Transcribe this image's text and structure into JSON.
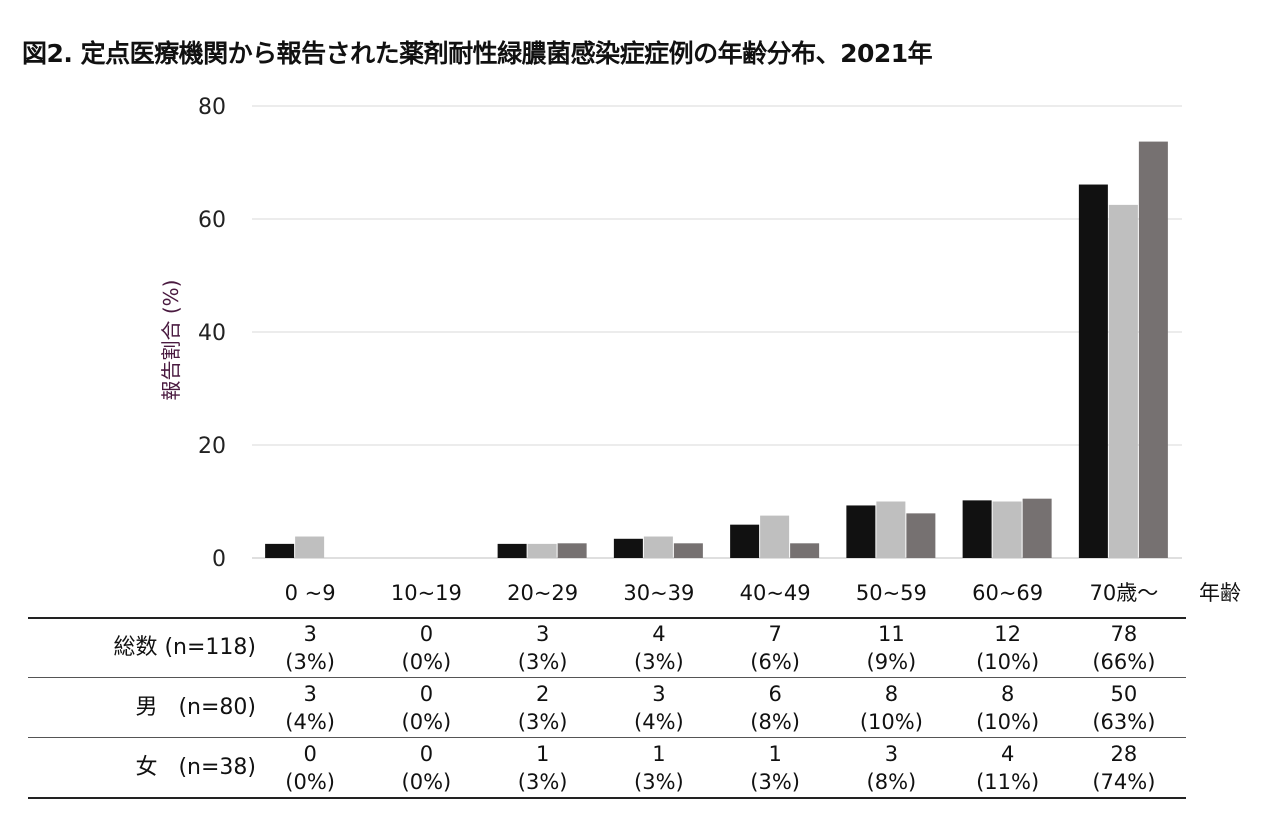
{
  "title": "図2. 定点医療機関から報告された薬剤耐性緑膿菌感染症症例の年齢分布、2021年",
  "chart_data": {
    "type": "bar",
    "ylabel": "報告割合 (%)",
    "xlabel": "年齢",
    "ylim": [
      0,
      80
    ],
    "yticks": [
      "0",
      "20",
      "40",
      "60",
      "80"
    ],
    "grid": true,
    "categories": [
      "0 ~9",
      "10~19",
      "20~29",
      "30~39",
      "40~49",
      "50~59",
      "60~69",
      "70歳～"
    ],
    "series": [
      {
        "name": "総数",
        "color": "#111111",
        "values": [
          2.5,
          0,
          2.5,
          3.4,
          5.9,
          9.3,
          10.2,
          66.1
        ]
      },
      {
        "name": "男",
        "color": "#bfbfbf",
        "values": [
          3.8,
          0,
          2.5,
          3.8,
          7.5,
          10.0,
          10.0,
          62.5
        ]
      },
      {
        "name": "女",
        "color": "#767171",
        "values": [
          0,
          0,
          2.6,
          2.6,
          2.6,
          7.9,
          10.5,
          73.7
        ]
      }
    ]
  },
  "table": {
    "rows": [
      {
        "label": "総数 (n=118)",
        "counts": [
          "3",
          "0",
          "3",
          "4",
          "7",
          "11",
          "12",
          "78"
        ],
        "pcts": [
          "(3%)",
          "(0%)",
          "(3%)",
          "(3%)",
          "(6%)",
          "(9%)",
          "(10%)",
          "(66%)"
        ]
      },
      {
        "label": "男   (n=80)",
        "counts": [
          "3",
          "0",
          "2",
          "3",
          "6",
          "8",
          "8",
          "50"
        ],
        "pcts": [
          "(4%)",
          "(0%)",
          "(3%)",
          "(4%)",
          "(8%)",
          "(10%)",
          "(10%)",
          "(63%)"
        ]
      },
      {
        "label": "女   (n=38)",
        "counts": [
          "0",
          "0",
          "1",
          "1",
          "1",
          "3",
          "4",
          "28"
        ],
        "pcts": [
          "(0%)",
          "(0%)",
          "(3%)",
          "(3%)",
          "(3%)",
          "(8%)",
          "(11%)",
          "(74%)"
        ]
      }
    ]
  }
}
